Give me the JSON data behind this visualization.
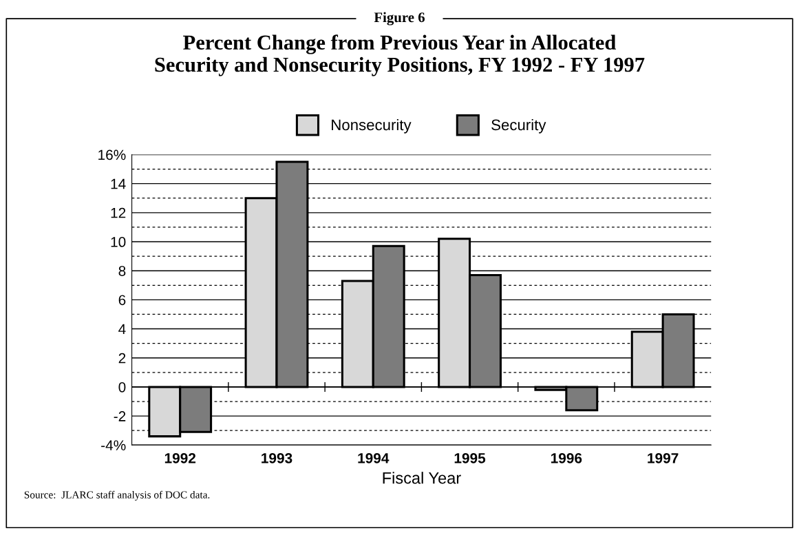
{
  "chart_data": {
    "type": "bar",
    "title": "Percent Change from Previous Year in Allocated\nSecurity and Nonsecurity Positions, FY 1992 - FY 1997",
    "xlabel": "Fiscal Year",
    "categories": [
      "1992",
      "1993",
      "1994",
      "1995",
      "1996",
      "1997"
    ],
    "series": [
      {
        "name": "Nonsecurity",
        "color": "#d8d8d8",
        "values": [
          -3.4,
          13.0,
          7.3,
          10.2,
          -0.2,
          3.8
        ]
      },
      {
        "name": "Security",
        "color": "#7c7c7c",
        "values": [
          -3.1,
          15.5,
          9.7,
          7.7,
          -1.6,
          5.0
        ]
      }
    ],
    "ylim": [
      -4,
      16
    ],
    "yticks": [
      {
        "value": -4,
        "label": "-4%"
      },
      {
        "value": -3,
        "label": null
      },
      -2,
      {
        "value": -1,
        "label": null
      },
      0,
      {
        "value": 1,
        "label": null
      },
      2,
      {
        "value": 3,
        "label": null
      },
      4,
      {
        "value": 5,
        "label": null
      },
      6,
      {
        "value": 7,
        "label": null
      },
      8,
      {
        "value": 9,
        "label": null
      },
      10,
      {
        "value": 11,
        "label": null
      },
      12,
      {
        "value": 13,
        "label": null
      },
      14,
      {
        "value": 15,
        "label": null
      },
      {
        "value": 16,
        "label": "16%"
      }
    ],
    "grid": "y",
    "legend": "top",
    "annotations": [
      "Figure 6",
      "Source:  JLARC staff analysis of DOC data."
    ]
  }
}
